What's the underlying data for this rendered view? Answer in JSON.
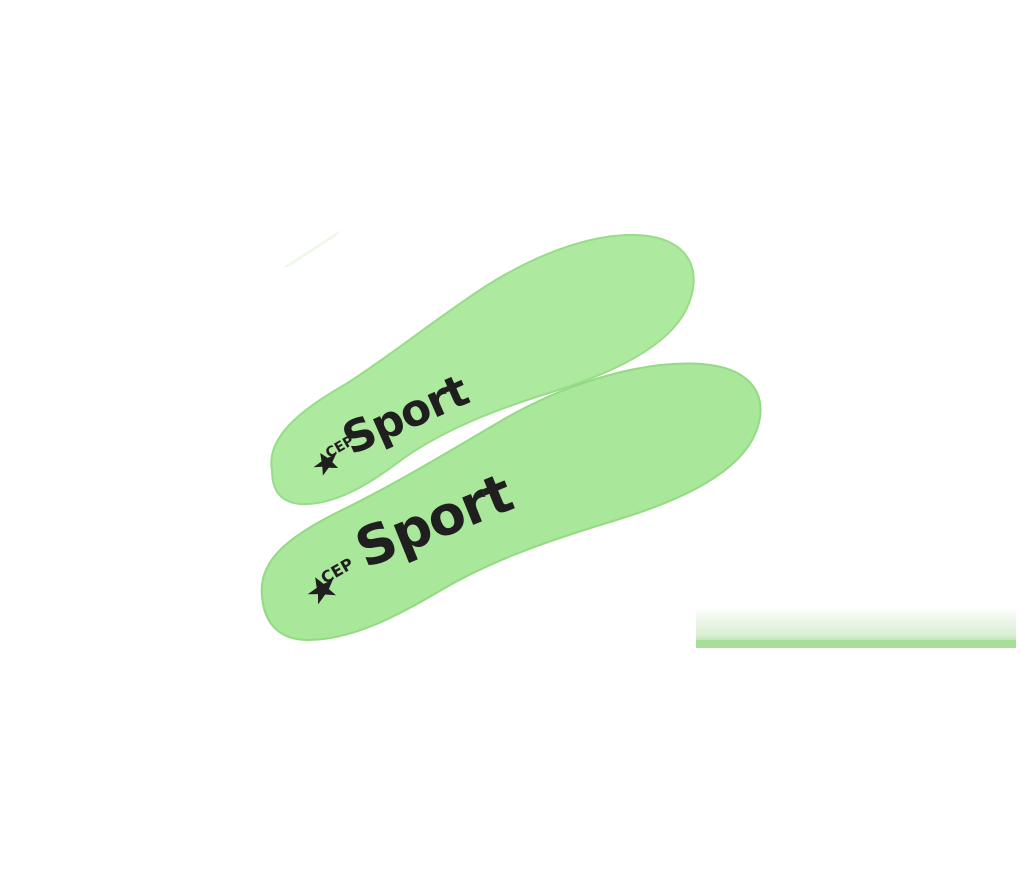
{
  "scene": {
    "description_label": "",
    "background_color": "#ffffff",
    "insole_color": "#a8e89a",
    "insole_edge_color": "#8ed681",
    "print_color": "#1f1f1f"
  },
  "insoles": [
    {
      "label": "Sport",
      "logo_text": "CEP",
      "logo_icon": "star-badge-icon"
    },
    {
      "label": "Sport",
      "logo_text": "CEP",
      "logo_icon": "star-badge-icon"
    }
  ]
}
